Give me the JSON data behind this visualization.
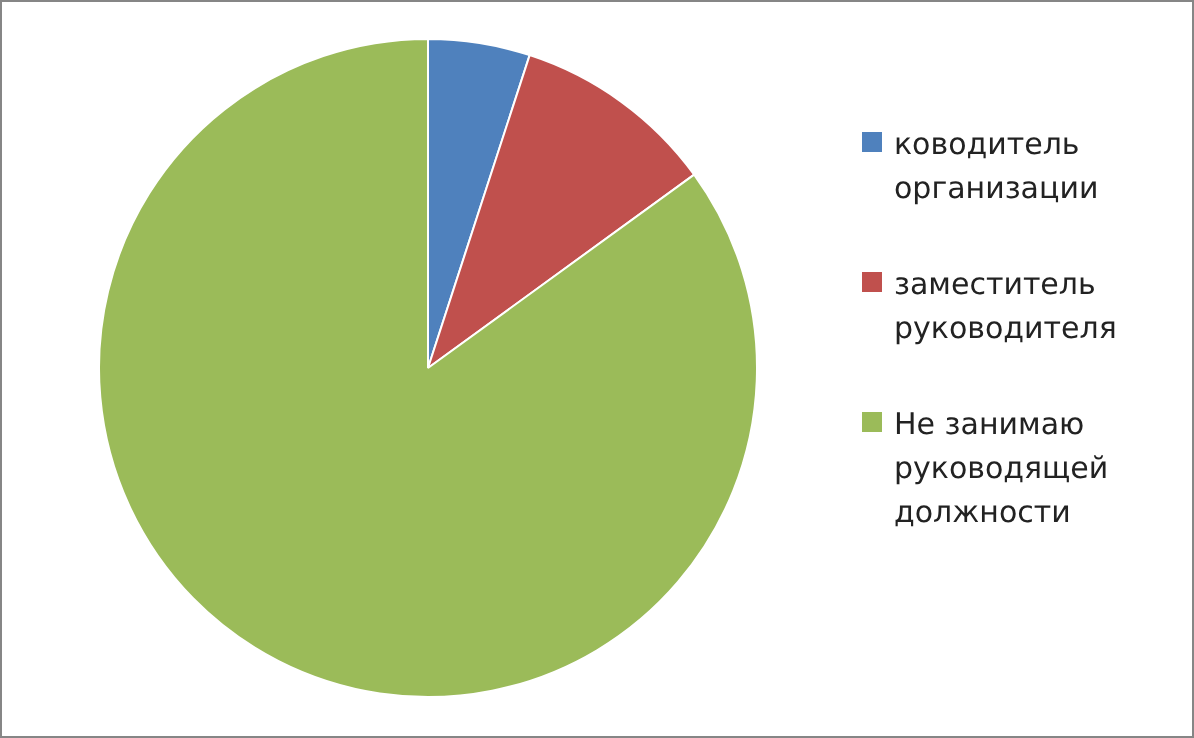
{
  "chart_data": {
    "type": "pie",
    "categories": [
      "ководитель организации",
      "заместитель руководителя",
      "Не занимаю руководящей должности"
    ],
    "values": [
      5,
      10,
      85
    ],
    "colors": [
      "#4f81bd",
      "#c0504d",
      "#9bbb59"
    ],
    "legend": "right"
  }
}
